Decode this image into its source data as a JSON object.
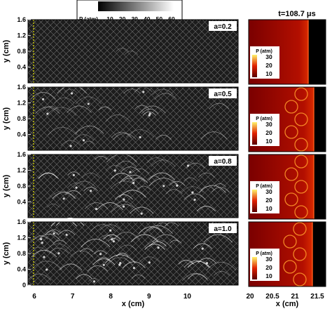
{
  "colorbar_top": {
    "label": "P (atm)",
    "ticks": [
      "10",
      "20",
      "30",
      "40",
      "50",
      "60"
    ]
  },
  "time_label": "t=108.7 μs",
  "left_panels": {
    "y_label": "y (cm)",
    "x_label": "x (cm)",
    "y_ticks": [
      "0",
      "0.4",
      "0.8",
      "1.2",
      "1.6"
    ],
    "x_ticks": [
      "6",
      "7",
      "8",
      "9",
      "10"
    ],
    "panels": [
      {
        "a_label": "a=0.2"
      },
      {
        "a_label": "a=0.5"
      },
      {
        "a_label": "a=0.8"
      },
      {
        "a_label": "a=1.0"
      }
    ]
  },
  "right_panels": {
    "x_label": "x (cm)",
    "x_ticks": [
      "20",
      "20.5",
      "21",
      "21.5"
    ],
    "legend_title": "P (atm)",
    "legend_ticks": [
      "30",
      "20",
      "10"
    ]
  },
  "colors": {
    "frame": "#000000",
    "schlieren_dark": "#1b1b1b",
    "marker_line": "#e6e600",
    "heat_dark": "#6a0000",
    "heat_mid": "#c41200",
    "heat_bright": "#ffe000"
  }
}
